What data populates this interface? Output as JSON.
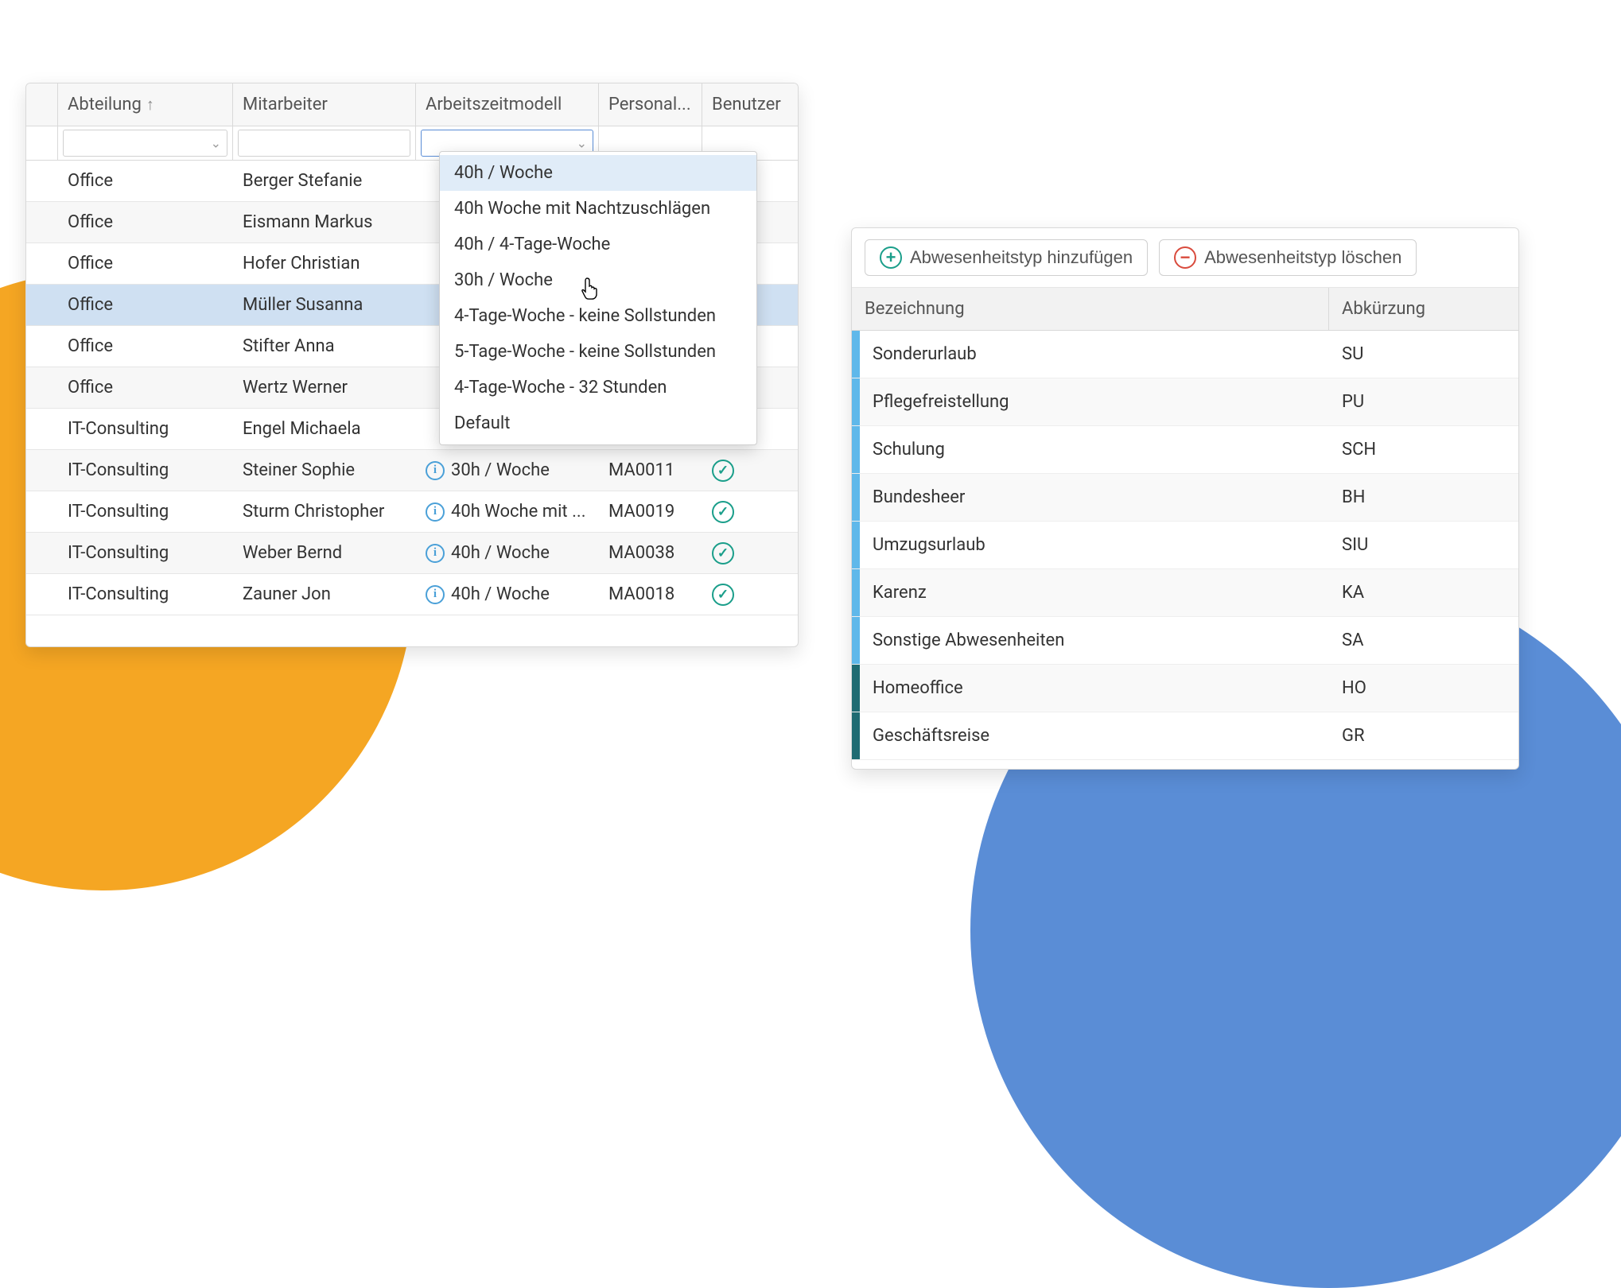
{
  "background": {
    "yellow": "#f5a623",
    "blue": "#5a8dd6"
  },
  "employeeGrid": {
    "columns": {
      "abteilung": "Abteilung",
      "mitarbeiter": "Mitarbeiter",
      "arbeitszeitmodell": "Arbeitszeitmodell",
      "personal": "Personal...",
      "benutzer": "Benutzer"
    },
    "rows": [
      {
        "abteilung": "Office",
        "mitarbeiter": "Berger Stefanie",
        "model": "",
        "personal": "",
        "check": true
      },
      {
        "abteilung": "Office",
        "mitarbeiter": "Eismann Markus",
        "model": "",
        "personal": "",
        "check": false
      },
      {
        "abteilung": "Office",
        "mitarbeiter": "Hofer Christian",
        "model": "",
        "personal": "",
        "check": true
      },
      {
        "abteilung": "Office",
        "mitarbeiter": "Müller Susanna",
        "model": "",
        "personal": "",
        "check": true,
        "selected": true
      },
      {
        "abteilung": "Office",
        "mitarbeiter": "Stifter Anna",
        "model": "",
        "personal": "",
        "check": false
      },
      {
        "abteilung": "Office",
        "mitarbeiter": "Wertz Werner",
        "model": "",
        "personal": "",
        "check": true
      },
      {
        "abteilung": "IT-Consulting",
        "mitarbeiter": "Engel Michaela",
        "model": "",
        "personal": "",
        "check": true
      },
      {
        "abteilung": "IT-Consulting",
        "mitarbeiter": "Steiner Sophie",
        "model": "30h / Woche",
        "personal": "MA0011",
        "check": true,
        "info": true
      },
      {
        "abteilung": "IT-Consulting",
        "mitarbeiter": "Sturm Christopher",
        "model": "40h Woche mit ...",
        "personal": "MA0019",
        "check": true,
        "info": true
      },
      {
        "abteilung": "IT-Consulting",
        "mitarbeiter": "Weber Bernd",
        "model": "40h / Woche",
        "personal": "MA0038",
        "check": true,
        "info": true
      },
      {
        "abteilung": "IT-Consulting",
        "mitarbeiter": "Zauner Jon",
        "model": "40h / Woche",
        "personal": "MA0018",
        "check": true,
        "info": true
      }
    ],
    "dropdown": {
      "options": [
        "40h / Woche",
        "40h Woche mit Nachtzuschlägen",
        "40h / 4-Tage-Woche",
        "30h / Woche",
        "4-Tage-Woche - keine Sollstunden",
        "5-Tage-Woche - keine Sollstunden",
        "4-Tage-Woche - 32 Stunden",
        "Default"
      ],
      "hoveredIndex": 0
    }
  },
  "absencePanel": {
    "toolbar": {
      "add": "Abwesenheitstyp hinzufügen",
      "delete": "Abwesenheitstyp löschen"
    },
    "columns": {
      "name": "Bezeichnung",
      "abbr": "Abkürzung"
    },
    "stripeColors": {
      "light": "#5fb8ea",
      "dark": "#1f6b72"
    },
    "rows": [
      {
        "name": "Sonderurlaub",
        "abbr": "SU",
        "stripe": "light"
      },
      {
        "name": "Pflegefreistellung",
        "abbr": "PU",
        "stripe": "light"
      },
      {
        "name": "Schulung",
        "abbr": "SCH",
        "stripe": "light"
      },
      {
        "name": "Bundesheer",
        "abbr": "BH",
        "stripe": "light"
      },
      {
        "name": "Umzugsurlaub",
        "abbr": "SIU",
        "stripe": "light"
      },
      {
        "name": "Karenz",
        "abbr": "KA",
        "stripe": "light"
      },
      {
        "name": "Sonstige Abwesenheiten",
        "abbr": "SA",
        "stripe": "light"
      },
      {
        "name": "Homeoffice",
        "abbr": "HO",
        "stripe": "dark"
      },
      {
        "name": "Geschäftsreise",
        "abbr": "GR",
        "stripe": "dark"
      }
    ]
  }
}
